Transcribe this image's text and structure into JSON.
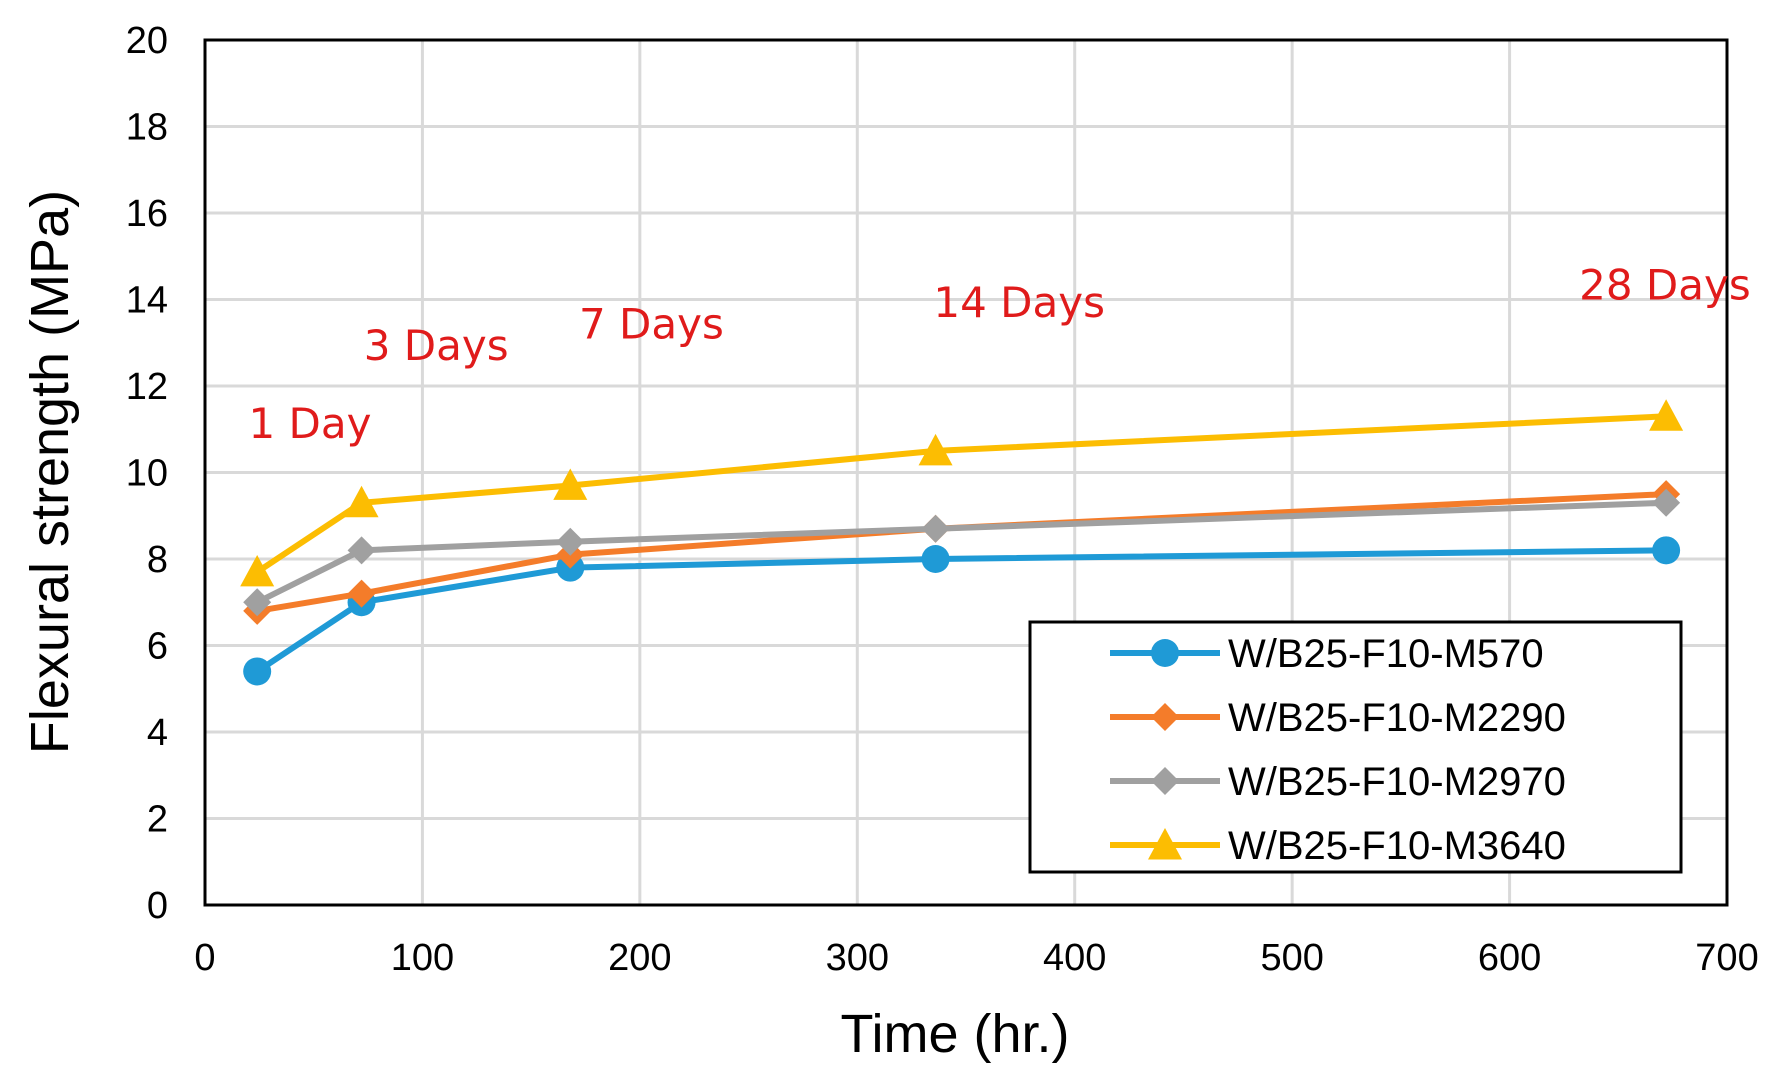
{
  "chart_data": {
    "type": "line",
    "title": "",
    "xlabel": "Time (hr.)",
    "ylabel": "Flexural strength (MPa)",
    "xlim": [
      0,
      700
    ],
    "ylim": [
      0,
      20
    ],
    "xticks": [
      0,
      100,
      200,
      300,
      400,
      500,
      600,
      700
    ],
    "yticks": [
      0,
      2,
      4,
      6,
      8,
      10,
      12,
      14,
      16,
      18,
      20
    ],
    "x": [
      24,
      72,
      168,
      336,
      672
    ],
    "grid": true,
    "legend_position": "bottom-right",
    "series": [
      {
        "name": "W/B25-F10-M570",
        "color": "#1f9ad6",
        "marker": "circle",
        "values": [
          5.4,
          7.0,
          7.8,
          8.0,
          8.2
        ]
      },
      {
        "name": "W/B25-F10-M2290",
        "color": "#f47c2a",
        "marker": "diamond",
        "values": [
          6.8,
          7.2,
          8.1,
          8.7,
          9.5
        ]
      },
      {
        "name": "W/B25-F10-M2970",
        "color": "#a0a0a0",
        "marker": "diamond",
        "values": [
          7.0,
          8.2,
          8.4,
          8.7,
          9.3
        ]
      },
      {
        "name": "W/B25-F10-M3640",
        "color": "#fcbd02",
        "marker": "triangle",
        "values": [
          7.7,
          9.3,
          9.7,
          10.5,
          11.3
        ]
      }
    ],
    "annotations": [
      {
        "text": "1 Day",
        "x": 20,
        "y": 10.8
      },
      {
        "text": "3 Days",
        "x": 73,
        "y": 12.6
      },
      {
        "text": "7 Days",
        "x": 172,
        "y": 13.1
      },
      {
        "text": "14 Days",
        "x": 335,
        "y": 13.6
      },
      {
        "text": "28 Days",
        "x": 632,
        "y": 14.0
      }
    ],
    "annotation_color": "#e01b1b"
  }
}
